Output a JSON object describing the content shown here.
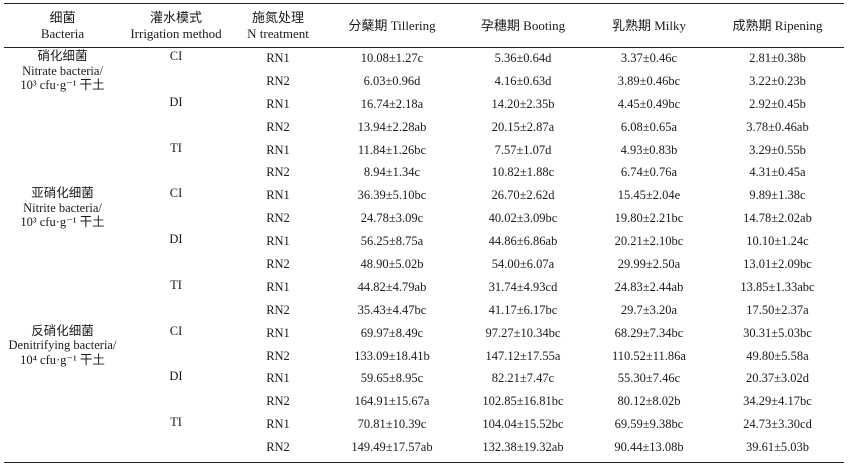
{
  "header": {
    "bacteria_cn": "细菌",
    "bacteria_en": "Bacteria",
    "irrigation_cn": "灌水模式",
    "irrigation_en": "Irrigation method",
    "n_cn": "施氮处理",
    "n_en": "N treatment",
    "tillering": "分蘖期 Tillering",
    "booting": "孕穗期 Booting",
    "milky": "乳熟期 Milky",
    "ripening": "成熟期 Ripening"
  },
  "groups": [
    {
      "name_cn": "硝化细菌",
      "name_en": "Nitrate bacteria/",
      "unit": "10³ cfu·g⁻¹ 干土",
      "rows": [
        {
          "irrigation": "CI",
          "n": "RN1",
          "tillering": "10.08±1.27c",
          "booting": "5.36±0.64d",
          "milky": "3.37±0.46c",
          "ripening": "2.81±0.38b"
        },
        {
          "irrigation": "",
          "n": "RN2",
          "tillering": "6.03±0.96d",
          "booting": "4.16±0.63d",
          "milky": "3.89±0.46bc",
          "ripening": "3.22±0.23b"
        },
        {
          "irrigation": "DI",
          "n": "RN1",
          "tillering": "16.74±2.18a",
          "booting": "14.20±2.35b",
          "milky": "4.45±0.49bc",
          "ripening": "2.92±0.45b"
        },
        {
          "irrigation": "",
          "n": "RN2",
          "tillering": "13.94±2.28ab",
          "booting": "20.15±2.87a",
          "milky": "6.08±0.65a",
          "ripening": "3.78±0.46ab"
        },
        {
          "irrigation": "TI",
          "n": "RN1",
          "tillering": "11.84±1.26bc",
          "booting": "7.57±1.07d",
          "milky": "4.93±0.83b",
          "ripening": "3.29±0.55b"
        },
        {
          "irrigation": "",
          "n": "RN2",
          "tillering": "8.94±1.34c",
          "booting": "10.82±1.88c",
          "milky": "6.74±0.76a",
          "ripening": "4.31±0.45a"
        }
      ]
    },
    {
      "name_cn": "亚硝化细菌",
      "name_en": "Nitrite bacteria/",
      "unit": "10³ cfu·g⁻¹ 干土",
      "rows": [
        {
          "irrigation": "CI",
          "n": "RN1",
          "tillering": "36.39±5.10bc",
          "booting": "26.70±2.62d",
          "milky": "15.45±2.04e",
          "ripening": "9.89±1.38c"
        },
        {
          "irrigation": "",
          "n": "RN2",
          "tillering": "24.78±3.09c",
          "booting": "40.02±3.09bc",
          "milky": "19.80±2.21bc",
          "ripening": "14.78±2.02ab"
        },
        {
          "irrigation": "DI",
          "n": "RN1",
          "tillering": "56.25±8.75a",
          "booting": "44.86±6.86ab",
          "milky": "20.21±2.10bc",
          "ripening": "10.10±1.24c"
        },
        {
          "irrigation": "",
          "n": "RN2",
          "tillering": "48.90±5.02b",
          "booting": "54.00±6.07a",
          "milky": "29.99±2.50a",
          "ripening": "13.01±2.09bc"
        },
        {
          "irrigation": "TI",
          "n": "RN1",
          "tillering": "44.82±4.79ab",
          "booting": "31.74±4.93cd",
          "milky": "24.83±2.44ab",
          "ripening": "13.85±1.33abc"
        },
        {
          "irrigation": "",
          "n": "RN2",
          "tillering": "35.43±4.47bc",
          "booting": "41.17±6.17bc",
          "milky": "29.7±3.20a",
          "ripening": "17.50±2.37a"
        }
      ]
    },
    {
      "name_cn": "反硝化细菌",
      "name_en": "Denitrifying bacteria/",
      "unit": "10⁴ cfu·g⁻¹ 干土",
      "rows": [
        {
          "irrigation": "CI",
          "n": "RN1",
          "tillering": "69.97±8.49c",
          "booting": "97.27±10.34bc",
          "milky": "68.29±7.34bc",
          "ripening": "30.31±5.03bc"
        },
        {
          "irrigation": "",
          "n": "RN2",
          "tillering": "133.09±18.41b",
          "booting": "147.12±17.55a",
          "milky": "110.52±11.86a",
          "ripening": "49.80±5.58a"
        },
        {
          "irrigation": "DI",
          "n": "RN1",
          "tillering": "59.65±8.95c",
          "booting": "82.21±7.47c",
          "milky": "55.30±7.46c",
          "ripening": "20.37±3.02d"
        },
        {
          "irrigation": "",
          "n": "RN2",
          "tillering": "164.91±15.67a",
          "booting": "102.85±16.81bc",
          "milky": "80.12±8.02b",
          "ripening": "34.29±4.17bc"
        },
        {
          "irrigation": "TI",
          "n": "RN1",
          "tillering": "70.81±10.39c",
          "booting": "104.04±15.52bc",
          "milky": "69.59±9.38bc",
          "ripening": "24.73±3.30cd"
        },
        {
          "irrigation": "",
          "n": "RN2",
          "tillering": "149.49±17.57ab",
          "booting": "132.38±19.32ab",
          "milky": "90.44±13.08b",
          "ripening": "39.61±5.03b"
        }
      ]
    }
  ]
}
